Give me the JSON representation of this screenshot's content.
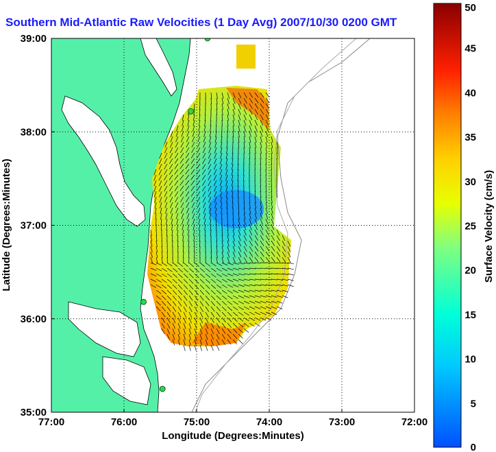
{
  "title": "Southern Mid-Atlantic Raw Velocities (1 Day Avg) 2007/10/30 0200 GMT",
  "x_axis": {
    "label": "Longitude (Degrees:Minutes)",
    "ticks": [
      "77:00",
      "76:00",
      "75:00",
      "74:00",
      "73:00",
      "72:00"
    ]
  },
  "y_axis": {
    "label": "Latitude (Degrees:Minutes)",
    "ticks": [
      "39:00",
      "38:00",
      "37:00",
      "36:00",
      "35:00"
    ]
  },
  "colorbar": {
    "label": "Surface Velocity (cm/s)",
    "ticks": [
      "50",
      "45",
      "40",
      "35",
      "30",
      "25",
      "20",
      "15",
      "10",
      "5",
      "0"
    ],
    "min": 0,
    "max": 50
  },
  "colors": {
    "land": "#55f0a8",
    "water": "#ffffff",
    "title": "#1a1aff",
    "arrow": "#000000",
    "station": "#22dd44"
  },
  "map": {
    "lon_range": [
      -77,
      -72
    ],
    "lat_range": [
      35,
      39
    ],
    "grid": "dotted",
    "stations": [
      {
        "lon": -74.85,
        "lat": 39.0
      },
      {
        "lon": -75.08,
        "lat": 38.22
      },
      {
        "lon": -75.73,
        "lat": 36.18
      },
      {
        "lon": -75.47,
        "lat": 35.25
      }
    ]
  }
}
